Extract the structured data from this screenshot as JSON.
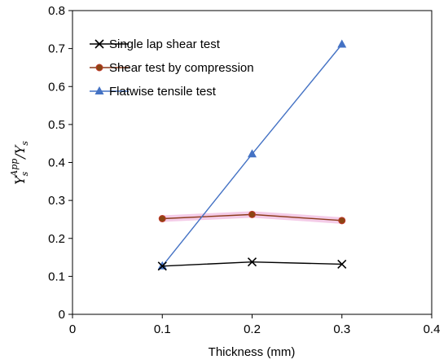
{
  "chart_data": {
    "type": "line",
    "xlabel": "Thickness (mm)",
    "ylabel": {
      "base": "Y",
      "sub": "s",
      "sup": "App",
      "denom_base": "Y",
      "denom_sub": "s"
    },
    "xlim": [
      0,
      0.4
    ],
    "ylim": [
      0,
      0.8
    ],
    "xticks": [
      "0",
      "0.1",
      "0.2",
      "0.3",
      "0.4"
    ],
    "yticks": [
      "0",
      "0.1",
      "0.2",
      "0.3",
      "0.4",
      "0.5",
      "0.6",
      "0.7",
      "0.8"
    ],
    "grid": false,
    "legend_position": "top-left",
    "x": [
      0.1,
      0.2,
      0.3
    ],
    "series": [
      {
        "name": "Single lap shear test",
        "values": [
          0.127,
          0.138,
          0.132
        ],
        "color": "#000000",
        "marker": "x"
      },
      {
        "name": "Shear test by compression",
        "values": [
          0.252,
          0.263,
          0.247
        ],
        "color": "#c0392b",
        "line_color": "#8b3a1a",
        "marker": "circle"
      },
      {
        "name": "Flatwise tensile test",
        "values": [
          0.127,
          0.422,
          0.711
        ],
        "color": "#4472c4",
        "marker": "triangle"
      }
    ]
  }
}
